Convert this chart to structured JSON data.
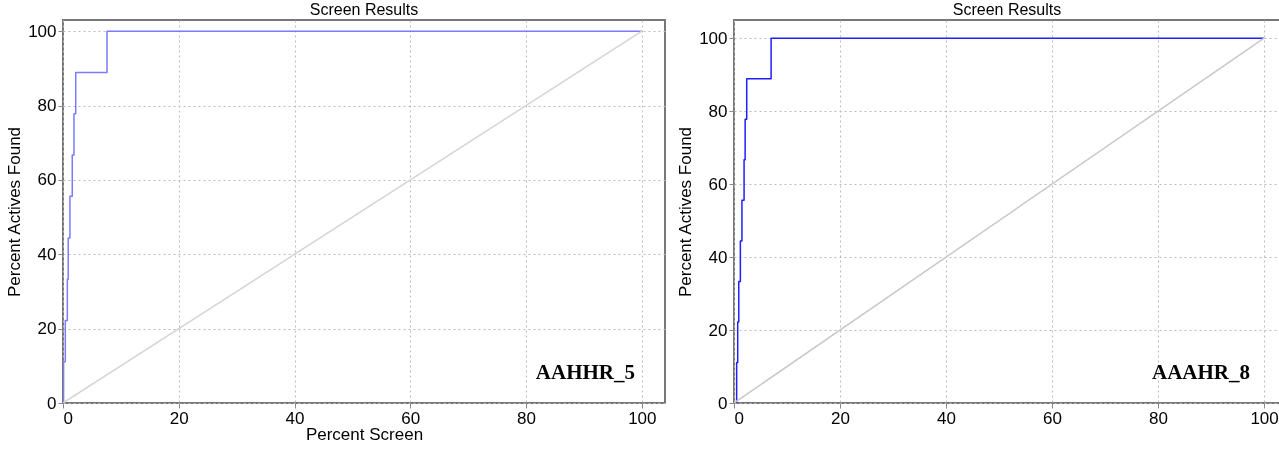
{
  "chart_data": [
    {
      "type": "step",
      "title": "Screen Results",
      "xlabel": "Percent Screen",
      "ylabel": "Percent Actives Found",
      "xlim": [
        0,
        104
      ],
      "ylim": [
        0,
        103
      ],
      "xticks": [
        0,
        20,
        40,
        60,
        80,
        100
      ],
      "yticks": [
        0,
        20,
        40,
        60,
        80,
        100
      ],
      "grid": true,
      "annotations": [
        "AAHHR_5"
      ],
      "series": [
        {
          "color": "#7b7bff",
          "x": [
            0,
            0.1,
            0.4,
            0.75,
            0.9,
            1.2,
            1.6,
            1.9,
            2.2,
            7.6,
            100
          ],
          "values": [
            0,
            11.1,
            22.2,
            33.3,
            44.4,
            55.6,
            66.7,
            77.8,
            88.9,
            100,
            100
          ]
        },
        {
          "type": "line",
          "color": "#d4d4d4",
          "x": [
            0,
            100
          ],
          "values": [
            0,
            100
          ]
        }
      ]
    },
    {
      "type": "step",
      "title": "Screen Results",
      "ylabel": "Percent Actives Found",
      "xlim": [
        0,
        103
      ],
      "ylim": [
        0,
        105
      ],
      "xticks": [
        0,
        20,
        40,
        60,
        80,
        100
      ],
      "yticks": [
        0,
        20,
        40,
        60,
        80,
        100
      ],
      "grid": true,
      "annotations": [
        "AAAHR_8"
      ],
      "series": [
        {
          "color": "#1f1fff",
          "x": [
            0,
            0.5,
            0.7,
            0.9,
            1.2,
            1.5,
            1.9,
            2.1,
            2.4,
            7.0,
            100
          ],
          "values": [
            0,
            11.1,
            22.2,
            33.3,
            44.4,
            55.6,
            66.7,
            77.8,
            88.9,
            100,
            100
          ]
        },
        {
          "type": "line",
          "color": "#c8c8c8",
          "x": [
            0,
            100
          ],
          "values": [
            0,
            100
          ]
        }
      ]
    }
  ]
}
